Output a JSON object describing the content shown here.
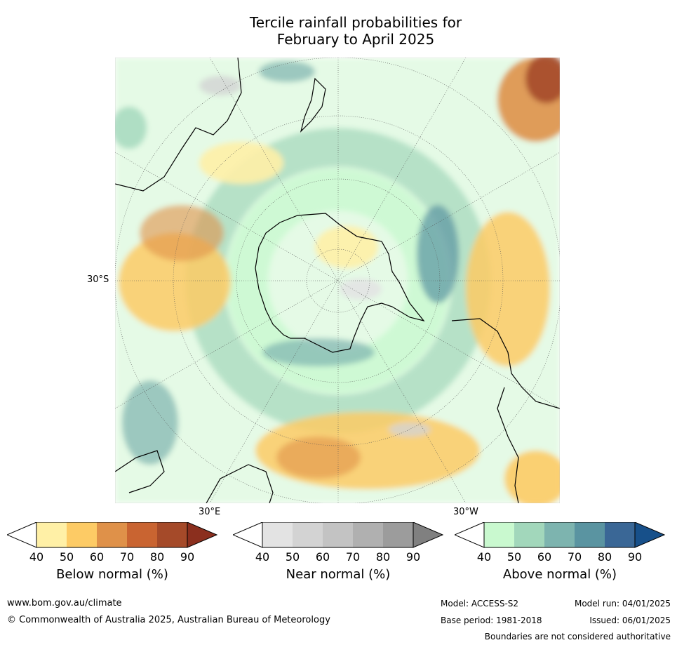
{
  "title": "Tercile rainfall probabilities for\nFebruary to April 2025",
  "map": {
    "latitude_labels": [
      "30°S",
      "30°E",
      "30°W"
    ],
    "category_colors": {
      "below": [
        "#fff0a6",
        "#fdcb65",
        "#df9149",
        "#c96431",
        "#a54a29",
        "#8b2f1e"
      ],
      "near": [
        "#e3e3e3",
        "#d3d3d3",
        "#c3c3c3",
        "#b0b0b0",
        "#9c9c9c",
        "#808080"
      ],
      "above": [
        "#c9f9cf",
        "#a2d7bb",
        "#7db4af",
        "#5a94a1",
        "#3a6796",
        "#17508a"
      ]
    }
  },
  "colorbars": [
    {
      "title": "Below normal (%)",
      "ticks": [
        "40",
        "50",
        "60",
        "70",
        "80",
        "90"
      ]
    },
    {
      "title": "Near normal (%)",
      "ticks": [
        "40",
        "50",
        "60",
        "70",
        "80",
        "90"
      ]
    },
    {
      "title": "Above normal (%)",
      "ticks": [
        "40",
        "50",
        "60",
        "70",
        "80",
        "90"
      ]
    }
  ],
  "footer": {
    "website": "www.bom.gov.au/climate",
    "copyright": "© Commonwealth of Australia 2025, Australian Bureau of Meteorology",
    "model": "Model: ACCESS-S2",
    "model_run": "Model run: 04/01/2025",
    "base_period": "Base period: 1981-2018",
    "issued": "Issued: 06/01/2025",
    "disclaimer": "Boundaries are not considered authoritative"
  }
}
